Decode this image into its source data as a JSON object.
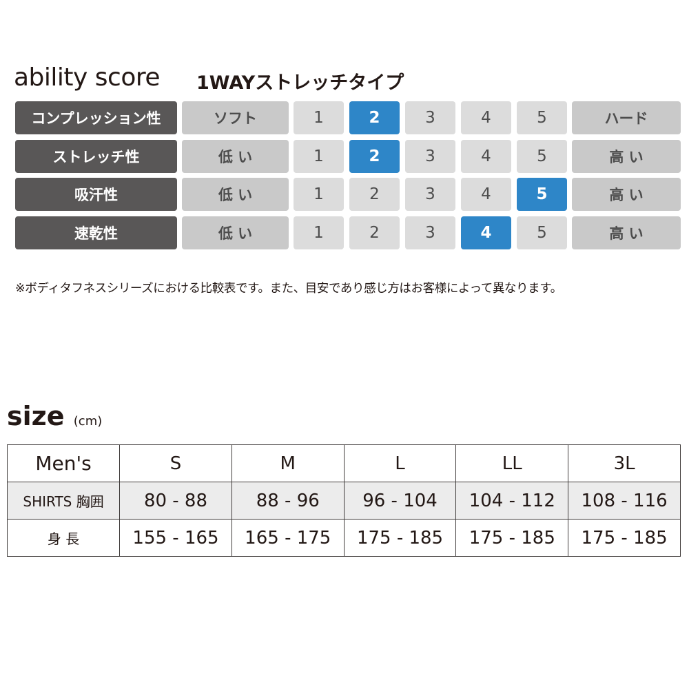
{
  "ability": {
    "title": "ability score",
    "subtitle": "1WAYストレッチタイプ",
    "scale": [
      "1",
      "2",
      "3",
      "4",
      "5"
    ],
    "colors": {
      "label_bg": "#595757",
      "end_bg": "#c9c9c9",
      "cell_bg": "#dcdcdc",
      "selected": "#2e86c8"
    },
    "rows": [
      {
        "label": "コンプレッション性",
        "low": "ソフト",
        "high": "ハード",
        "score": 2
      },
      {
        "label": "ストレッチ性",
        "low": "低 い",
        "high": "高 い",
        "score": 2
      },
      {
        "label": "吸汗性",
        "low": "低 い",
        "high": "高 い",
        "score": 5
      },
      {
        "label": "速乾性",
        "low": "低 い",
        "high": "高 い",
        "score": 4
      }
    ],
    "note": "※ボディタフネスシリーズにおける比較表です。また、目安であり感じ方はお客様によって異なります。"
  },
  "size": {
    "title": "size",
    "unit": "(cm)",
    "header": [
      "Men's",
      "S",
      "M",
      "L",
      "LL",
      "3L"
    ],
    "rows": [
      [
        "SHIRTS 胸囲",
        "80 - 88",
        "88 - 96",
        "96 - 104",
        "104 - 112",
        "108 - 116"
      ],
      [
        "身 長",
        "155 - 165",
        "165 - 175",
        "175 - 185",
        "175 - 185",
        "175 - 185"
      ]
    ]
  }
}
